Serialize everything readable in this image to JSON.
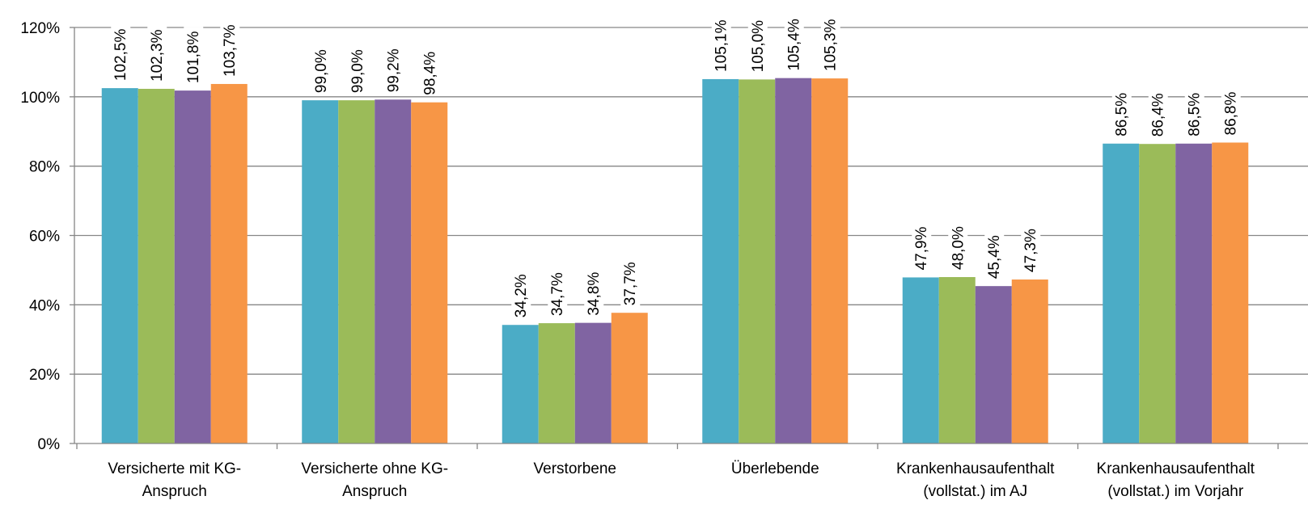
{
  "chart_data": {
    "type": "bar",
    "title": "",
    "xlabel": "",
    "ylabel": "",
    "ylim": [
      0,
      120
    ],
    "yticks": [
      0,
      20,
      40,
      60,
      80,
      100,
      120
    ],
    "ytick_labels": [
      "0%",
      "20%",
      "40%",
      "60%",
      "80%",
      "100%",
      "120%"
    ],
    "grid": true,
    "legend": "none",
    "categories": [
      [
        "Versicherte mit KG-",
        "Anspruch"
      ],
      [
        "Versicherte ohne KG-",
        "Anspruch"
      ],
      [
        "Verstorbene"
      ],
      [
        "Überlebende"
      ],
      [
        "Krankenhausaufenthalt",
        "(vollstat.) im AJ"
      ],
      [
        "Krankenhausaufenthalt",
        "(vollstat.) im Vorjahr"
      ]
    ],
    "series": [
      {
        "color": "#4BACC6",
        "values": [
          102.5,
          99.0,
          34.2,
          105.1,
          47.9,
          86.5
        ],
        "labels": [
          "102,5%",
          "99,0%",
          "34,2%",
          "105,1%",
          "47,9%",
          "86,5%"
        ]
      },
      {
        "color": "#9BBB59",
        "values": [
          102.3,
          99.0,
          34.7,
          105.0,
          48.0,
          86.4
        ],
        "labels": [
          "102,3%",
          "99,0%",
          "34,7%",
          "105,0%",
          "48,0%",
          "86,4%"
        ]
      },
      {
        "color": "#8064A2",
        "values": [
          101.8,
          99.2,
          34.8,
          105.4,
          45.4,
          86.5
        ],
        "labels": [
          "101,8%",
          "99,2%",
          "34,8%",
          "105,4%",
          "45,4%",
          "86,5%"
        ]
      },
      {
        "color": "#F79646",
        "values": [
          103.7,
          98.4,
          37.7,
          105.3,
          47.3,
          86.8
        ],
        "labels": [
          "103,7%",
          "98,4%",
          "37,7%",
          "105,3%",
          "47,3%",
          "86,8%"
        ]
      }
    ]
  }
}
